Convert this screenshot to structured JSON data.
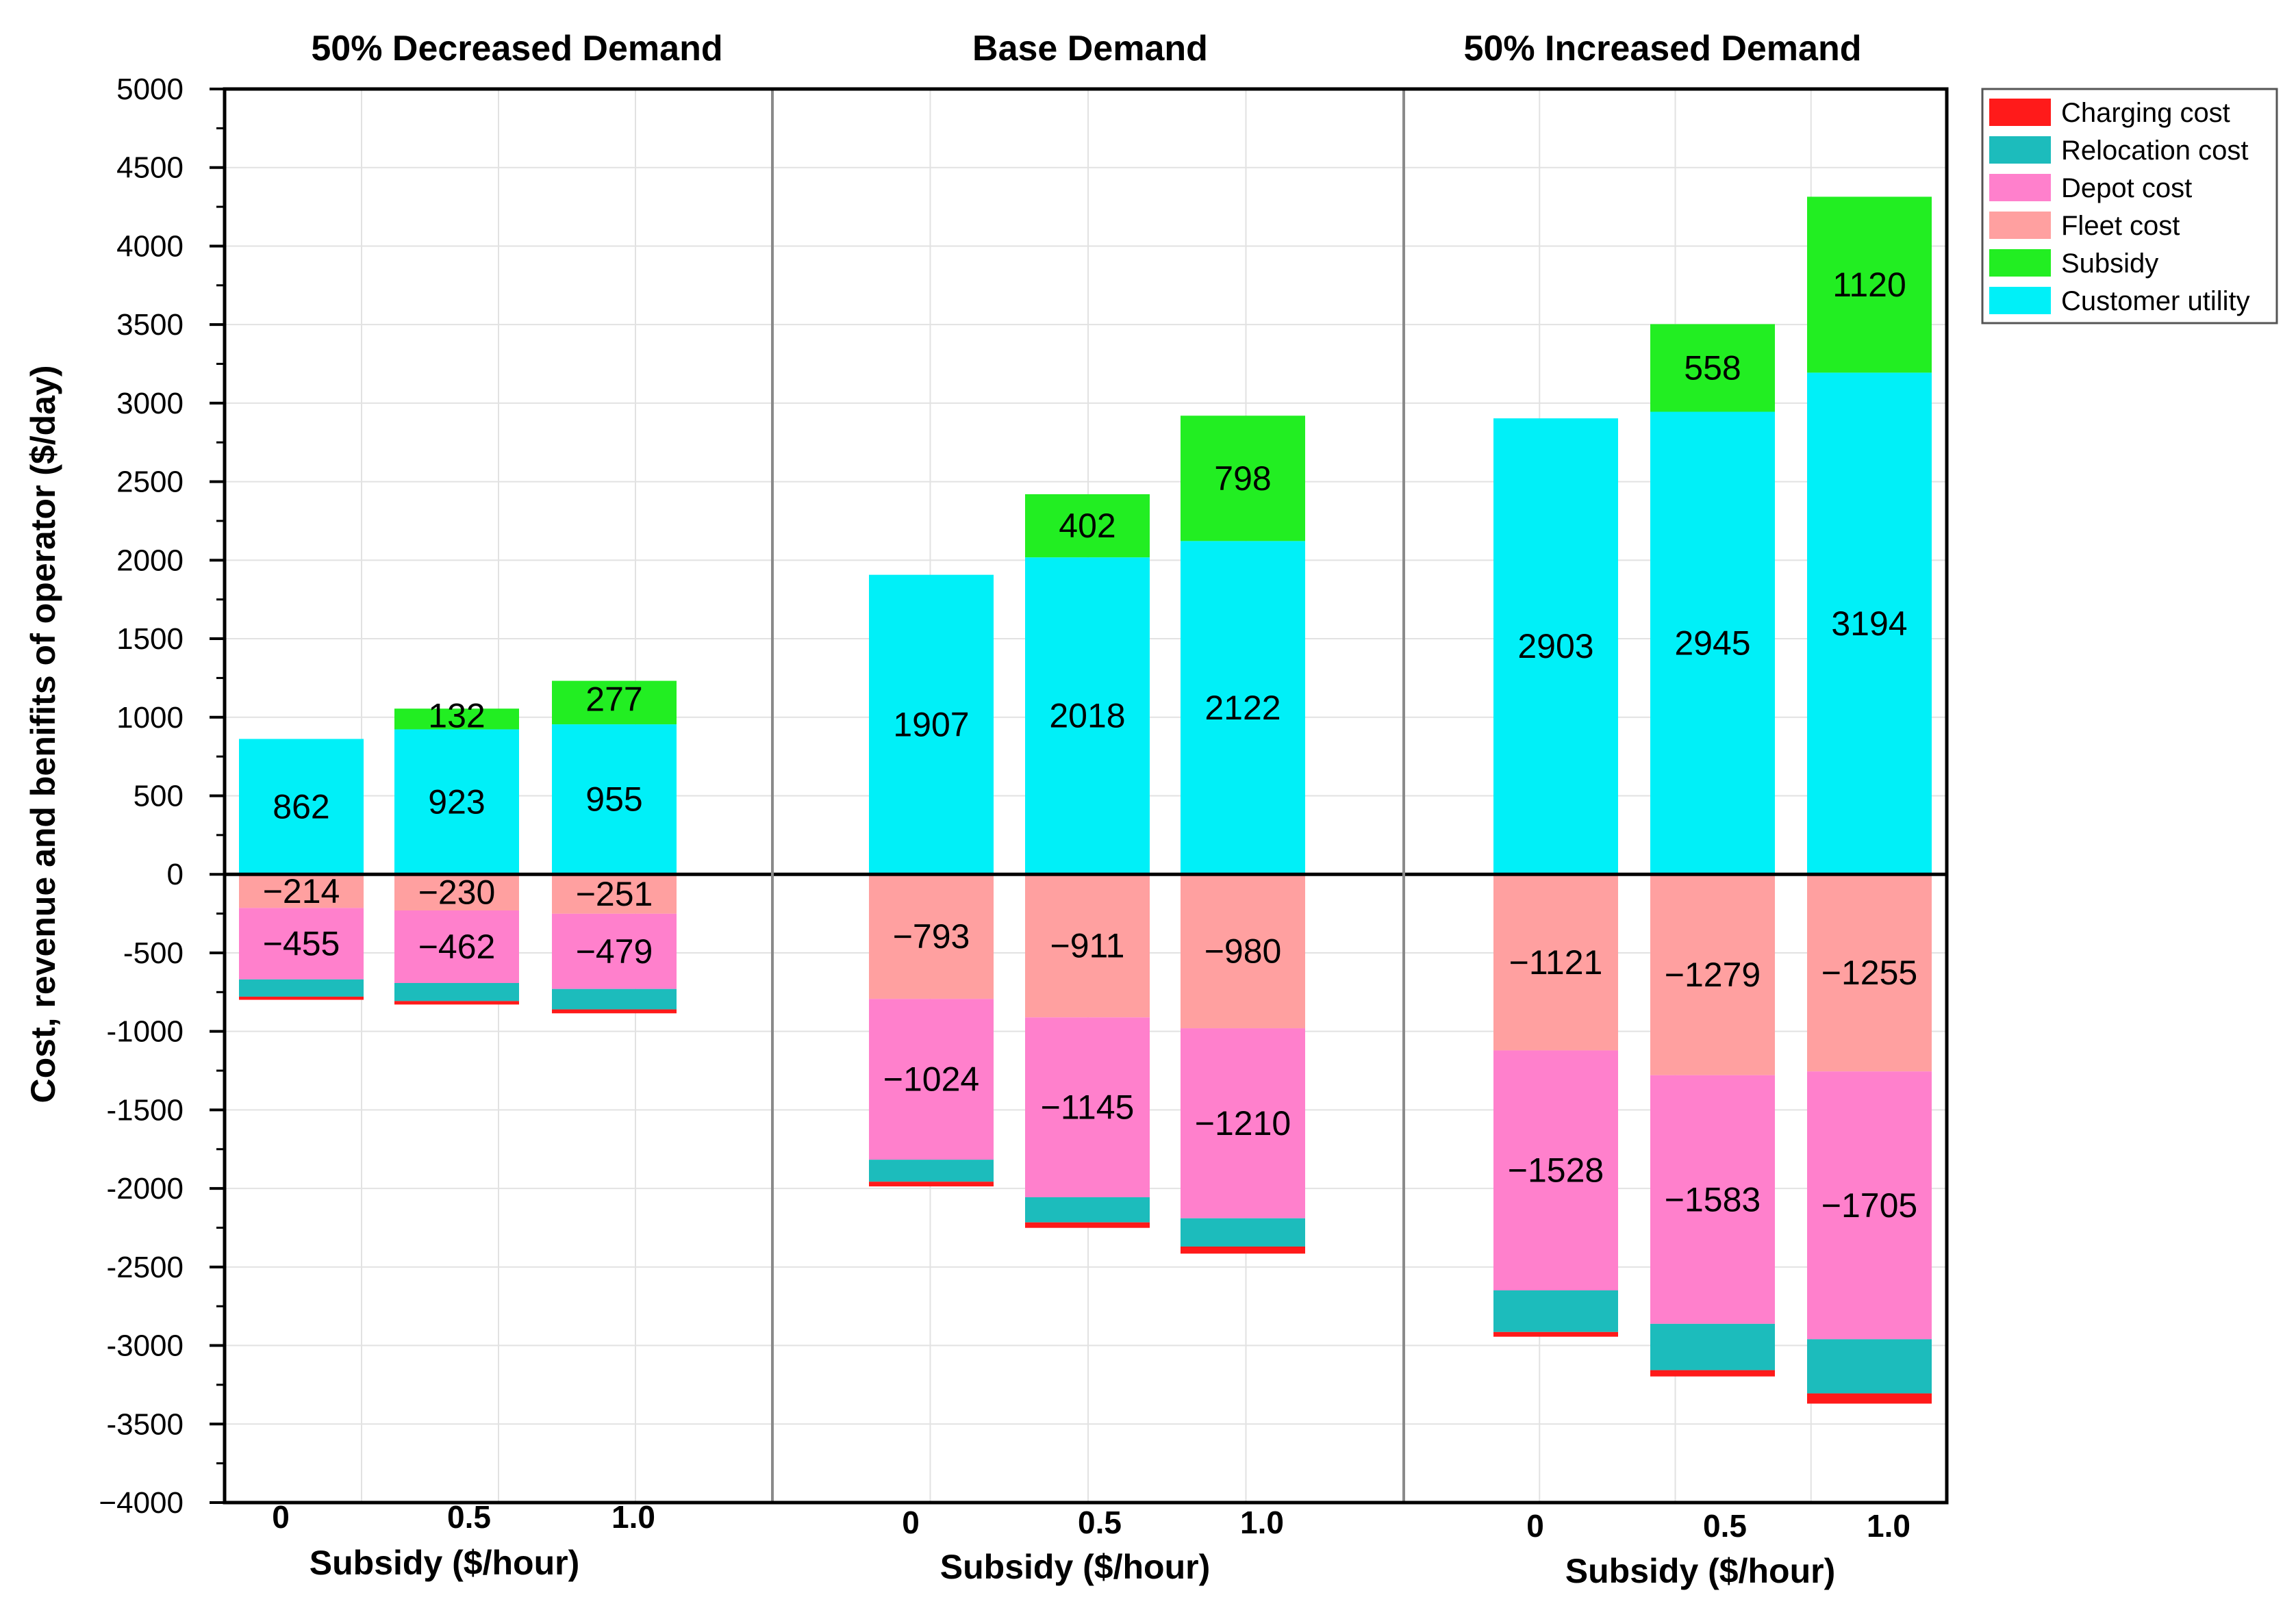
{
  "chart_data": {
    "type": "bar",
    "stacked": true,
    "ylabel": "Cost, revenue and benifits of operator ($/day)",
    "ylim": [
      -4000,
      5000
    ],
    "ytick_step": 500,
    "grid": true,
    "legend_position": "top-right",
    "series": [
      {
        "name": "Charging cost",
        "color": "#ff1a1a"
      },
      {
        "name": "Relocation cost",
        "color": "#1cbcbc"
      },
      {
        "name": "Depot cost",
        "color": "#ff80cc"
      },
      {
        "name": "Fleet cost",
        "color": "#ffa0a0"
      },
      {
        "name": "Subsidy",
        "color": "#22ee22"
      },
      {
        "name": "Customer utility",
        "color": "#00f0f8"
      }
    ],
    "panels": [
      {
        "title": "50% Decreased Demand",
        "xlabel": "Subsidy ($/hour)",
        "categories": [
          "0",
          "0.5",
          "1.0"
        ],
        "bars": [
          {
            "customer_utility": 862,
            "subsidy": 0,
            "fleet_cost": -214,
            "depot_cost": -455,
            "relocation_cost": -110,
            "charging_cost": -20,
            "labels": {
              "customer_utility": "862",
              "subsidy": "",
              "fleet_cost": "−214",
              "depot_cost": "−455"
            }
          },
          {
            "customer_utility": 923,
            "subsidy": 132,
            "fleet_cost": -230,
            "depot_cost": -462,
            "relocation_cost": -115,
            "charging_cost": -22,
            "labels": {
              "customer_utility": "923",
              "subsidy": "132",
              "fleet_cost": "−230",
              "depot_cost": "−462"
            }
          },
          {
            "customer_utility": 955,
            "subsidy": 277,
            "fleet_cost": -251,
            "depot_cost": -479,
            "relocation_cost": -130,
            "charging_cost": -25,
            "labels": {
              "customer_utility": "955",
              "subsidy": "277",
              "fleet_cost": "−251",
              "depot_cost": "−479"
            }
          }
        ]
      },
      {
        "title": "Base Demand",
        "xlabel": "Subsidy ($/hour)",
        "categories": [
          "0",
          "0.5",
          "1.0"
        ],
        "bars": [
          {
            "customer_utility": 1907,
            "subsidy": 0,
            "fleet_cost": -793,
            "depot_cost": -1024,
            "relocation_cost": -140,
            "charging_cost": -30,
            "labels": {
              "customer_utility": "1907",
              "subsidy": "",
              "fleet_cost": "−793",
              "depot_cost": "−1024"
            }
          },
          {
            "customer_utility": 2018,
            "subsidy": 402,
            "fleet_cost": -911,
            "depot_cost": -1145,
            "relocation_cost": -160,
            "charging_cost": -35,
            "labels": {
              "customer_utility": "2018",
              "subsidy": "402",
              "fleet_cost": "−911",
              "depot_cost": "−1145"
            }
          },
          {
            "customer_utility": 2122,
            "subsidy": 798,
            "fleet_cost": -980,
            "depot_cost": -1210,
            "relocation_cost": -180,
            "charging_cost": -45,
            "labels": {
              "customer_utility": "2122",
              "subsidy": "798",
              "fleet_cost": "−980",
              "depot_cost": "−1210"
            }
          }
        ]
      },
      {
        "title": "50% Increased Demand",
        "xlabel": "Subsidy ($/hour)",
        "categories": [
          "0",
          "0.5",
          "1.0"
        ],
        "bars": [
          {
            "customer_utility": 2903,
            "subsidy": 0,
            "fleet_cost": -1121,
            "depot_cost": -1528,
            "relocation_cost": -265,
            "charging_cost": -30,
            "labels": {
              "customer_utility": "2903",
              "subsidy": "",
              "fleet_cost": "−1121",
              "depot_cost": "−1528"
            }
          },
          {
            "customer_utility": 2945,
            "subsidy": 558,
            "fleet_cost": -1279,
            "depot_cost": -1583,
            "relocation_cost": -295,
            "charging_cost": -40,
            "labels": {
              "customer_utility": "2945",
              "subsidy": "558",
              "fleet_cost": "−1279",
              "depot_cost": "−1583"
            }
          },
          {
            "customer_utility": 3194,
            "subsidy": 1120,
            "fleet_cost": -1255,
            "depot_cost": -1705,
            "relocation_cost": -345,
            "charging_cost": -65,
            "labels": {
              "customer_utility": "3194",
              "subsidy": "1120",
              "fleet_cost": "−1255",
              "depot_cost": "−1705"
            }
          }
        ]
      }
    ]
  }
}
